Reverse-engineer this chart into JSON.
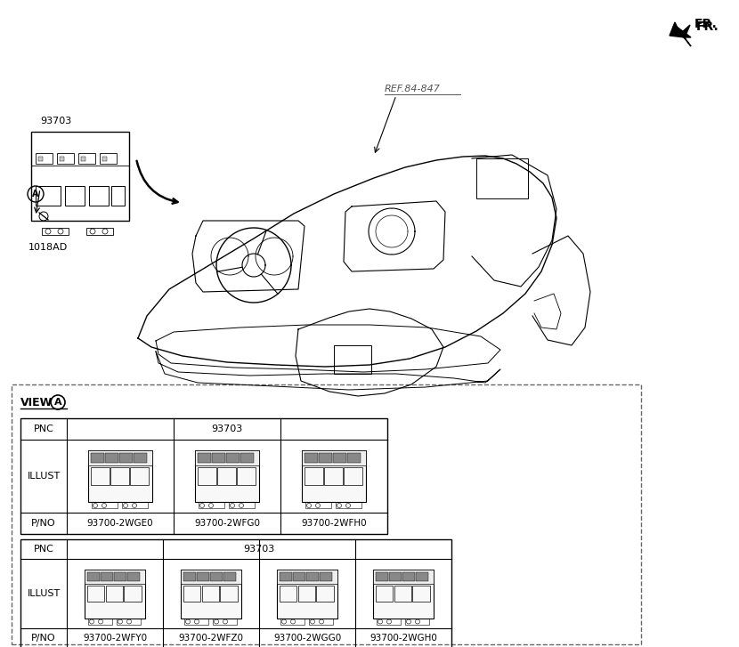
{
  "fr_label": "FR.",
  "ref_label": "REF.84-847",
  "part_label_93703": "93703",
  "part_label_1018AD": "1018AD",
  "circle_label_A": "A",
  "view_label": "VIEW",
  "view_circle": "A",
  "pnc_label": "PNC",
  "illust_label": "ILLUST",
  "pno_label": "P/NO",
  "pnc_value": "93703",
  "row1_pno": [
    "93700-2WGE0",
    "93700-2WFG0",
    "93700-2WFH0"
  ],
  "row2_pno": [
    "93700-2WFY0",
    "93700-2WFZ0",
    "93700-2WGG0",
    "93700-2WGH0"
  ],
  "bg_color": "#ffffff"
}
